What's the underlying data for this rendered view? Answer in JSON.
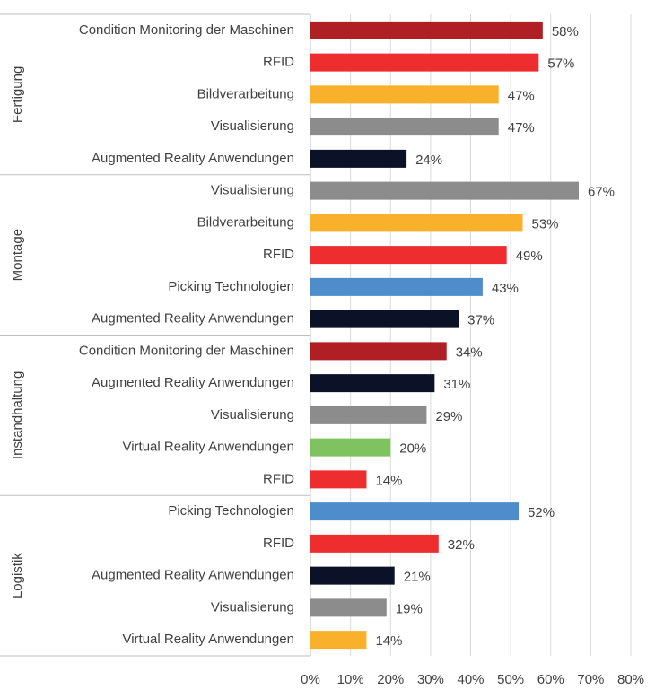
{
  "chart_data": {
    "type": "bar",
    "orientation": "horizontal",
    "title": "",
    "xlabel": "",
    "ylabel": "",
    "xlim": [
      0,
      80
    ],
    "x_ticks": [
      "0%",
      "10%",
      "20%",
      "30%",
      "40%",
      "50%",
      "60%",
      "70%",
      "80%"
    ],
    "grid": "vertical",
    "legend": "none",
    "groups": [
      {
        "name": "Fertigung",
        "items": [
          {
            "label": "Condition Monitoring der Maschinen",
            "value": 58,
            "value_label": "58%",
            "color": "#b01f24"
          },
          {
            "label": "RFID",
            "value": 57,
            "value_label": "57%",
            "color": "#ee2e2e"
          },
          {
            "label": "Bildverarbeitung",
            "value": 47,
            "value_label": "47%",
            "color": "#f9b02b"
          },
          {
            "label": "Visualisierung",
            "value": 47,
            "value_label": "47%",
            "color": "#8c8c8c"
          },
          {
            "label": "Augmented Reality Anwendungen",
            "value": 24,
            "value_label": "24%",
            "color": "#0b1227"
          }
        ]
      },
      {
        "name": "Montage",
        "items": [
          {
            "label": "Visualisierung",
            "value": 67,
            "value_label": "67%",
            "color": "#8c8c8c"
          },
          {
            "label": "Bildverarbeitung",
            "value": 53,
            "value_label": "53%",
            "color": "#f9b02b"
          },
          {
            "label": "RFID",
            "value": 49,
            "value_label": "49%",
            "color": "#ee2e2e"
          },
          {
            "label": "Picking Technologien",
            "value": 43,
            "value_label": "43%",
            "color": "#4e8ccc"
          },
          {
            "label": "Augmented Reality Anwendungen",
            "value": 37,
            "value_label": "37%",
            "color": "#0b1227"
          }
        ]
      },
      {
        "name": "Instandhaltung",
        "items": [
          {
            "label": "Condition Monitoring der Maschinen",
            "value": 34,
            "value_label": "34%",
            "color": "#b01f24"
          },
          {
            "label": "Augmented Reality Anwendungen",
            "value": 31,
            "value_label": "31%",
            "color": "#0b1227"
          },
          {
            "label": "Visualisierung",
            "value": 29,
            "value_label": "29%",
            "color": "#8c8c8c"
          },
          {
            "label": "Virtual Reality Anwendungen",
            "value": 20,
            "value_label": "20%",
            "color": "#7ec35f"
          },
          {
            "label": "RFID",
            "value": 14,
            "value_label": "14%",
            "color": "#ee2e2e"
          }
        ]
      },
      {
        "name": "Logistik",
        "items": [
          {
            "label": "Picking Technologien",
            "value": 52,
            "value_label": "52%",
            "color": "#4e8ccc"
          },
          {
            "label": "RFID",
            "value": 32,
            "value_label": "32%",
            "color": "#ee2e2e"
          },
          {
            "label": "Augmented Reality Anwendungen",
            "value": 21,
            "value_label": "21%",
            "color": "#0b1227"
          },
          {
            "label": "Visualisierung",
            "value": 19,
            "value_label": "19%",
            "color": "#8c8c8c"
          },
          {
            "label": "Virtual Reality Anwendungen",
            "value": 14,
            "value_label": "14%",
            "color": "#f9b02b"
          }
        ]
      }
    ]
  }
}
